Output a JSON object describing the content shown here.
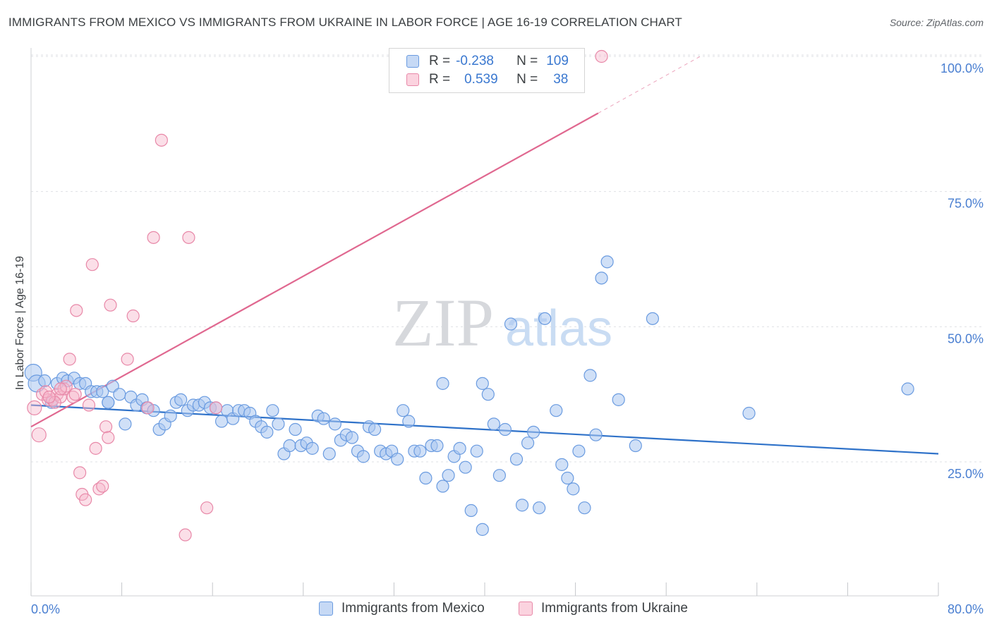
{
  "title": "IMMIGRANTS FROM MEXICO VS IMMIGRANTS FROM UKRAINE IN LABOR FORCE | AGE 16-19 CORRELATION CHART",
  "source": "Source: ZipAtlas.com",
  "watermark": {
    "zip": "ZIP",
    "atlas": "atlas"
  },
  "legend": {
    "r_label": "R =",
    "n_label": "N =",
    "rows": [
      {
        "series": "Immigrants from Mexico",
        "r": "-0.238",
        "n": "109",
        "color": "#a9c7f0",
        "stroke": "#6a9be0"
      },
      {
        "series": "Immigrants from Ukraine",
        "r": "0.539",
        "n": "38",
        "color": "#f7b8cc",
        "stroke": "#e888a8"
      }
    ]
  },
  "bottom_legend": [
    "Immigrants from Mexico",
    "Immigrants from Ukraine"
  ],
  "chart_data": {
    "type": "scatter",
    "title": "IMMIGRANTS FROM MEXICO VS IMMIGRANTS FROM UKRAINE IN LABOR FORCE | AGE 16-19 CORRELATION CHART",
    "xlabel": "",
    "ylabel": "In Labor Force | Age 16-19",
    "xlim": [
      0,
      80
    ],
    "ylim": [
      0,
      102
    ],
    "x_tick_labels": [
      {
        "value": 0,
        "label": "0.0%"
      },
      {
        "value": 80,
        "label": "80.0%"
      }
    ],
    "y_tick_labels": [
      {
        "value": 25,
        "label": "25.0%"
      },
      {
        "value": 50,
        "label": "50.0%"
      },
      {
        "value": 75,
        "label": "75.0%"
      },
      {
        "value": 100,
        "label": "100.0%"
      }
    ],
    "x_minor_ticks": [
      0,
      8,
      16,
      24,
      32,
      40,
      48,
      56,
      64,
      72,
      80
    ],
    "grid": true,
    "series": [
      {
        "name": "Immigrants from Mexico",
        "color": "#a9c7f0",
        "stroke": "#6a9be0",
        "trend": {
          "x0": 0,
          "y0": 35.5,
          "x1": 80,
          "y1": 26.5,
          "color": "#2f72c9"
        },
        "points": [
          [
            0.2,
            41.5
          ],
          [
            0.5,
            39.5
          ],
          [
            1.2,
            40
          ],
          [
            1.8,
            36
          ],
          [
            2.3,
            39.5
          ],
          [
            2.8,
            40.5
          ],
          [
            3.2,
            40
          ],
          [
            3.8,
            40.5
          ],
          [
            4.3,
            39.5
          ],
          [
            4.8,
            39.5
          ],
          [
            5.3,
            38
          ],
          [
            5.8,
            38
          ],
          [
            6.3,
            38
          ],
          [
            6.8,
            36
          ],
          [
            7.2,
            39
          ],
          [
            7.8,
            37.5
          ],
          [
            8.3,
            32
          ],
          [
            8.8,
            37
          ],
          [
            9.3,
            35.5
          ],
          [
            9.8,
            36.5
          ],
          [
            10.2,
            35
          ],
          [
            10.8,
            34.5
          ],
          [
            11.3,
            31
          ],
          [
            11.8,
            32
          ],
          [
            12.3,
            33.5
          ],
          [
            12.8,
            36
          ],
          [
            13.2,
            36.5
          ],
          [
            13.8,
            34.5
          ],
          [
            14.3,
            35.5
          ],
          [
            14.8,
            35.5
          ],
          [
            15.3,
            36
          ],
          [
            15.8,
            35
          ],
          [
            16.3,
            35
          ],
          [
            16.8,
            32.5
          ],
          [
            17.3,
            34.5
          ],
          [
            17.8,
            33
          ],
          [
            18.3,
            34.5
          ],
          [
            18.8,
            34.5
          ],
          [
            19.3,
            34
          ],
          [
            19.8,
            32.5
          ],
          [
            20.3,
            31.5
          ],
          [
            20.8,
            30.5
          ],
          [
            21.3,
            34.5
          ],
          [
            21.8,
            32
          ],
          [
            22.3,
            26.5
          ],
          [
            22.8,
            28
          ],
          [
            23.3,
            31
          ],
          [
            23.8,
            28
          ],
          [
            24.3,
            28.5
          ],
          [
            24.8,
            27.5
          ],
          [
            25.3,
            33.5
          ],
          [
            25.8,
            33
          ],
          [
            26.3,
            26.5
          ],
          [
            26.8,
            32
          ],
          [
            27.3,
            29
          ],
          [
            27.8,
            30
          ],
          [
            28.3,
            29.5
          ],
          [
            28.8,
            27
          ],
          [
            29.3,
            26
          ],
          [
            29.8,
            31.5
          ],
          [
            30.3,
            31
          ],
          [
            30.8,
            27
          ],
          [
            31.3,
            26.5
          ],
          [
            31.8,
            27
          ],
          [
            32.3,
            25.5
          ],
          [
            32.8,
            34.5
          ],
          [
            33.3,
            32.5
          ],
          [
            33.8,
            27
          ],
          [
            34.3,
            27
          ],
          [
            34.8,
            22
          ],
          [
            35.3,
            28
          ],
          [
            35.8,
            28
          ],
          [
            36.3,
            20.5
          ],
          [
            36.8,
            22.5
          ],
          [
            37.3,
            26
          ],
          [
            37.8,
            27.5
          ],
          [
            38.3,
            24
          ],
          [
            38.8,
            16
          ],
          [
            39.3,
            27
          ],
          [
            39.8,
            12.5
          ],
          [
            40.3,
            37.5
          ],
          [
            40.8,
            32
          ],
          [
            41.3,
            22.5
          ],
          [
            41.8,
            31
          ],
          [
            42.3,
            50.5
          ],
          [
            42.8,
            25.5
          ],
          [
            43.3,
            17
          ],
          [
            43.8,
            28.5
          ],
          [
            44.3,
            30.5
          ],
          [
            44.8,
            16.5
          ],
          [
            45.3,
            51.5
          ],
          [
            46.3,
            34.5
          ],
          [
            46.8,
            24.5
          ],
          [
            47.3,
            22
          ],
          [
            47.8,
            20
          ],
          [
            48.3,
            27
          ],
          [
            48.8,
            16.5
          ],
          [
            49.3,
            41
          ],
          [
            49.8,
            30
          ],
          [
            50.3,
            59
          ],
          [
            50.8,
            62
          ],
          [
            51.8,
            36.5
          ],
          [
            53.3,
            28
          ],
          [
            54.8,
            51.5
          ],
          [
            63.3,
            34
          ],
          [
            77.3,
            38.5
          ],
          [
            39.8,
            39.5
          ],
          [
            36.3,
            39.5
          ],
          [
            6.8,
            36
          ]
        ]
      },
      {
        "name": "Immigrants from Ukraine",
        "color": "#f7b8cc",
        "stroke": "#e888a8",
        "trend": {
          "x0": 0,
          "y0": 31.5,
          "x1": 50,
          "y1": 89.5,
          "x2": 59,
          "y2": 100,
          "color": "#e06890"
        },
        "points": [
          [
            0.3,
            35
          ],
          [
            0.7,
            30
          ],
          [
            1,
            37.5
          ],
          [
            1.5,
            36.5
          ],
          [
            1.9,
            36.5
          ],
          [
            2.3,
            37.5
          ],
          [
            2.6,
            37
          ],
          [
            2.9,
            38.5
          ],
          [
            3.1,
            39
          ],
          [
            3.4,
            44
          ],
          [
            3.7,
            37
          ],
          [
            4,
            53
          ],
          [
            4.3,
            23
          ],
          [
            4.5,
            19
          ],
          [
            4.8,
            18
          ],
          [
            5.1,
            35.5
          ],
          [
            5.4,
            61.5
          ],
          [
            5.7,
            27.5
          ],
          [
            6,
            20
          ],
          [
            6.3,
            20.5
          ],
          [
            6.6,
            31.5
          ],
          [
            6.8,
            29.5
          ],
          [
            7,
            54
          ],
          [
            8.5,
            44
          ],
          [
            9,
            52
          ],
          [
            10.3,
            35
          ],
          [
            10.8,
            66.5
          ],
          [
            11.5,
            84.5
          ],
          [
            13.9,
            66.5
          ],
          [
            13.6,
            11.5
          ],
          [
            15.5,
            16.5
          ],
          [
            16.3,
            35
          ],
          [
            50.3,
            100
          ],
          [
            1.3,
            38
          ],
          [
            2.1,
            36
          ],
          [
            2.6,
            38.5
          ],
          [
            3.9,
            37.5
          ],
          [
            1.6,
            37
          ]
        ]
      }
    ]
  }
}
